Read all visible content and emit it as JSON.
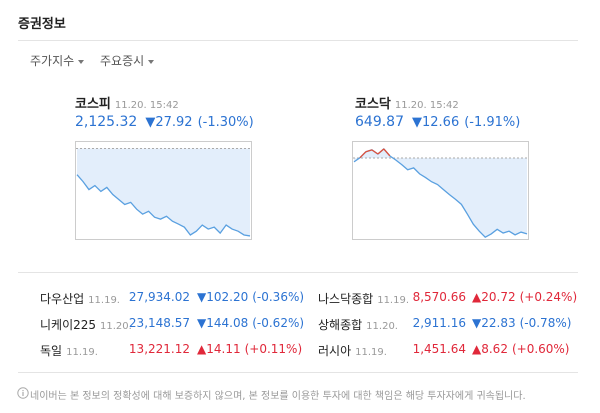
{
  "header": {
    "title": "증권정보"
  },
  "tabs": [
    "주가지수",
    "주요증시"
  ],
  "colors": {
    "down": "#2c73d2",
    "up": "#e0283a",
    "fill": "#e3eefb"
  },
  "indices": [
    {
      "name": "코스피",
      "time": "11.20. 15:42",
      "value": "2,125.32",
      "change": "▼27.92",
      "percent": "(-1.30%)",
      "direction": "down",
      "chart": {
        "ylim": [
          2115,
          2156
        ],
        "reference": 2153.24,
        "values": [
          2142.2,
          2139.3,
          2135.9,
          2137.6,
          2135.1,
          2136.8,
          2133.8,
          2131.7,
          2129.6,
          2130.5,
          2127.6,
          2125.5,
          2126.7,
          2124.2,
          2123.4,
          2124.6,
          2122.5,
          2121.3,
          2120.0,
          2116.7,
          2118.3,
          2120.9,
          2119.2,
          2120.0,
          2117.5,
          2120.9,
          2119.2,
          2118.3,
          2116.7,
          2116.3
        ]
      }
    },
    {
      "name": "코스닥",
      "time": "11.20. 15:42",
      "value": "649.87",
      "change": "▼12.66",
      "percent": "(-1.91%)",
      "direction": "down",
      "chart": {
        "ylim": [
          645,
          666
        ],
        "reference": 662.53,
        "values": [
          661.7,
          662.6,
          663.9,
          664.3,
          663.4,
          664.5,
          663.0,
          662.1,
          661.1,
          660.0,
          660.4,
          659.1,
          658.3,
          657.4,
          656.8,
          655.7,
          654.6,
          653.6,
          652.5,
          650.4,
          648.2,
          646.7,
          645.4,
          646.1,
          647.1,
          646.3,
          646.7,
          645.9,
          646.5,
          646.1
        ]
      }
    }
  ],
  "markets": [
    {
      "name": "다우산업",
      "date": "11.19.",
      "value": "27,934.02",
      "change": "▼102.20",
      "percent": "(-0.36%)",
      "direction": "down"
    },
    {
      "name": "니케이225",
      "date": "11.20.",
      "value": "23,148.57",
      "change": "▼144.08",
      "percent": "(-0.62%)",
      "direction": "down"
    },
    {
      "name": "독일",
      "date": "11.19.",
      "value": "13,221.12",
      "change": "▲14.11",
      "percent": "(+0.11%)",
      "direction": "up"
    },
    {
      "name": "나스닥종합",
      "date": "11.19.",
      "value": "8,570.66",
      "change": "▲20.72",
      "percent": "(+0.24%)",
      "direction": "up"
    },
    {
      "name": "상해종합",
      "date": "11.20.",
      "value": "2,911.16",
      "change": "▼22.83",
      "percent": "(-0.78%)",
      "direction": "down"
    },
    {
      "name": "러시아",
      "date": "11.19.",
      "value": "1,451.64",
      "change": "▲8.62",
      "percent": "(+0.60%)",
      "direction": "up"
    }
  ],
  "footer": {
    "notice": "네이버는 본 정보의 정확성에 대해 보증하지 않으며, 본 정보를 이용한 투자에 대한 책임은 해당 투자자에게 귀속됩니다."
  }
}
